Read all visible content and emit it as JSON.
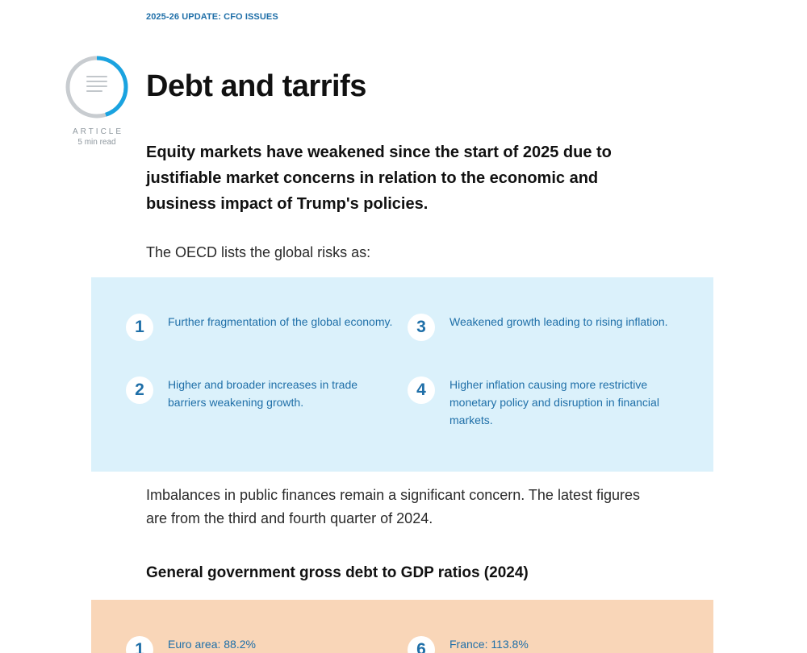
{
  "header": {
    "kicker": "2025-26 UPDATE: CFO ISSUES"
  },
  "badge": {
    "label": "ARTICLE",
    "read_time": "5 min read",
    "icon": "document-icon",
    "ring_color": "#1aa3e0",
    "ring_track_color": "#c8ccd0",
    "progress_fraction": 0.45
  },
  "article": {
    "title": "Debt and tarrifs",
    "lead": "Equity markets have weakened since the start of 2025 due to justifiable market concerns in relation to the economic and business impact of Trump's policies.",
    "intro": "The OECD lists the global risks as:",
    "paragraph": "Imbalances in public finances remain a significant concern. The latest figures are from the third and fourth quarter of 2024.",
    "subheading": "General government gross debt to GDP ratios (2024)"
  },
  "risks": [
    {
      "number": "1",
      "text": "Further fragmentation of the global economy."
    },
    {
      "number": "2",
      "text": "Higher and broader increases in trade barriers weakening growth."
    },
    {
      "number": "3",
      "text": "Weakened growth leading to rising inflation."
    },
    {
      "number": "4",
      "text": "Higher inflation causing more restrictive monetary policy and disruption in financial markets."
    }
  ],
  "debt_ratios": [
    {
      "number": "1",
      "text": "Euro area: 88.2%"
    },
    {
      "number": "6",
      "text": "France: 113.8%"
    }
  ],
  "colors": {
    "accent": "#1f6fa8",
    "risk_panel_bg": "#dbf1fb",
    "debt_panel_bg": "#f9d6b8"
  }
}
